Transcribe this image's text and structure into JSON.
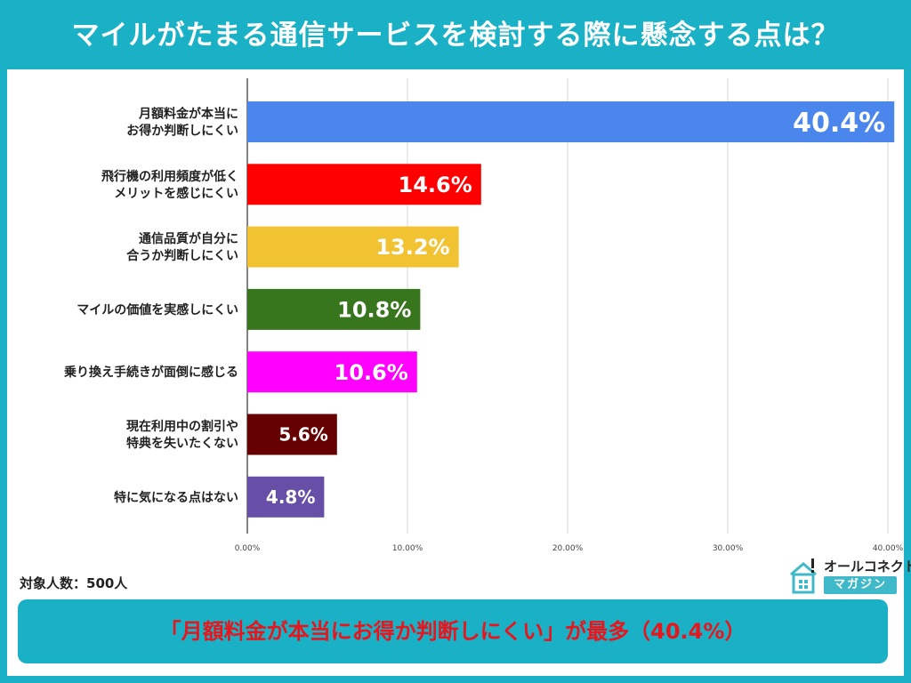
{
  "header": {
    "title": "マイルがたまる通信サービスを検討する際に懸念する点は？"
  },
  "chart_data": {
    "type": "bar",
    "orientation": "horizontal",
    "title": "マイルがたまる通信サービスを検討する際に懸念する点は？",
    "categories": [
      [
        "月額料金が本当に",
        "お得か判断しにくい"
      ],
      [
        "飛行機の利用頻度が低く",
        "メリットを感じにくい"
      ],
      [
        "通信品質が自分に",
        "合うか判断しにくい"
      ],
      [
        "マイルの価値を実感しにくい"
      ],
      [
        "乗り換え手続きが面倒に感じる"
      ],
      [
        "現在利用中の割引や",
        "特典を失いたくない"
      ],
      [
        "特に気になる点はない"
      ]
    ],
    "values": [
      40.4,
      14.6,
      13.2,
      10.8,
      10.6,
      5.6,
      4.8
    ],
    "value_labels": [
      "40.4%",
      "14.6%",
      "13.2%",
      "10.8%",
      "10.6%",
      "5.6%",
      "4.8%"
    ],
    "colors": [
      "#4a86ec",
      "#ff0000",
      "#f1c232",
      "#38761d",
      "#ff00ff",
      "#660000",
      "#674ea7"
    ],
    "xlim": [
      0,
      40
    ],
    "xticks": [
      0,
      10,
      20,
      30,
      40
    ],
    "xtick_labels": [
      "0.00%",
      "10.00%",
      "20.00%",
      "30.00%",
      "40.00%"
    ],
    "grid": true
  },
  "footer": {
    "sample_size": "対象人数：500人",
    "summary": "「月額料金が本当にお得か判断しにくい」が最多（40.4%）"
  },
  "logo": {
    "top": "オールコネクト",
    "bottom": "マガジン"
  },
  "colors": {
    "accent": "#1ab1c6",
    "highlight": "#e8151c"
  }
}
